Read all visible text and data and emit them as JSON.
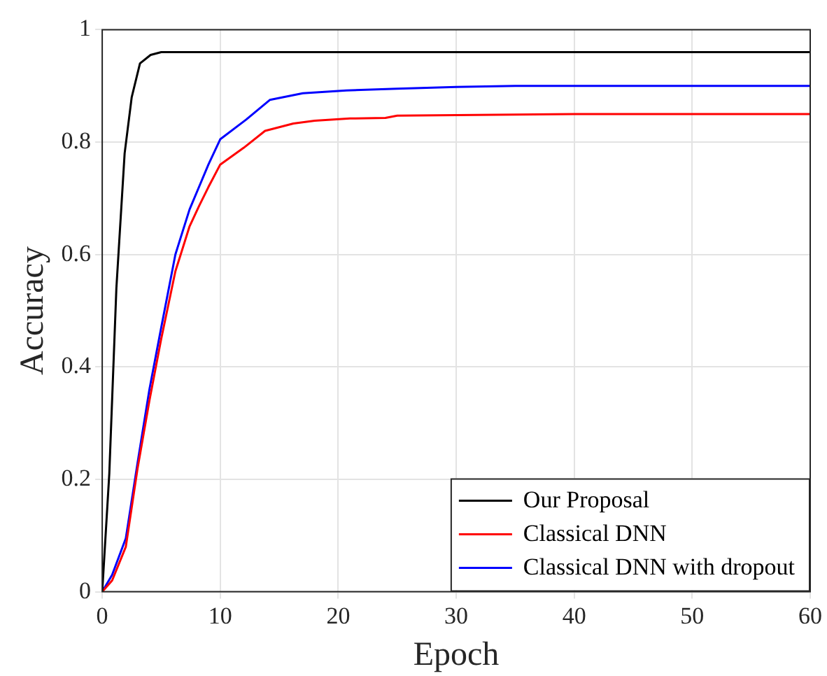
{
  "chart_data": {
    "type": "line",
    "xlabel": "Epoch",
    "ylabel": "Accuracy",
    "xlim": [
      0,
      60
    ],
    "ylim": [
      0,
      1
    ],
    "xticks": [
      0,
      10,
      20,
      30,
      40,
      50,
      60
    ],
    "yticks": [
      0,
      0.2,
      0.4,
      0.6,
      0.8,
      1
    ],
    "grid": true,
    "legend": "bottom right",
    "marker": "none",
    "line_style": "solid",
    "series": [
      {
        "name": "Our Proposal",
        "color": "#000000",
        "x": [
          0,
          0.6,
          1.2,
          1.9,
          2.5,
          3.2,
          4.1,
          5,
          6,
          10,
          20,
          30,
          40,
          50,
          60
        ],
        "values": [
          0,
          0.21,
          0.54,
          0.78,
          0.88,
          0.94,
          0.955,
          0.96,
          0.96,
          0.96,
          0.96,
          0.96,
          0.96,
          0.96,
          0.96
        ]
      },
      {
        "name": "Classical DNN",
        "color": "#ff0000",
        "x": [
          0,
          0.84,
          2,
          3,
          4,
          5,
          6.2,
          7.4,
          8.2,
          9,
          10,
          12,
          13.8,
          16.2,
          18,
          21,
          24,
          25,
          30,
          40,
          50,
          60
        ],
        "values": [
          0,
          0.02,
          0.08,
          0.22,
          0.34,
          0.45,
          0.57,
          0.65,
          0.686,
          0.72,
          0.76,
          0.79,
          0.82,
          0.833,
          0.838,
          0.842,
          0.843,
          0.847,
          0.848,
          0.85,
          0.85,
          0.85
        ]
      },
      {
        "name": "Classical DNN with dropout",
        "color": "#0000ff",
        "x": [
          0,
          0.84,
          2,
          3,
          4,
          5,
          6.2,
          7.4,
          8.4,
          9,
          10,
          12.2,
          14.2,
          17,
          20.7,
          25,
          30,
          35,
          40,
          50,
          60
        ],
        "values": [
          0,
          0.03,
          0.095,
          0.23,
          0.36,
          0.47,
          0.6,
          0.68,
          0.73,
          0.76,
          0.805,
          0.84,
          0.875,
          0.887,
          0.892,
          0.895,
          0.898,
          0.9,
          0.9,
          0.9,
          0.9
        ]
      }
    ]
  }
}
